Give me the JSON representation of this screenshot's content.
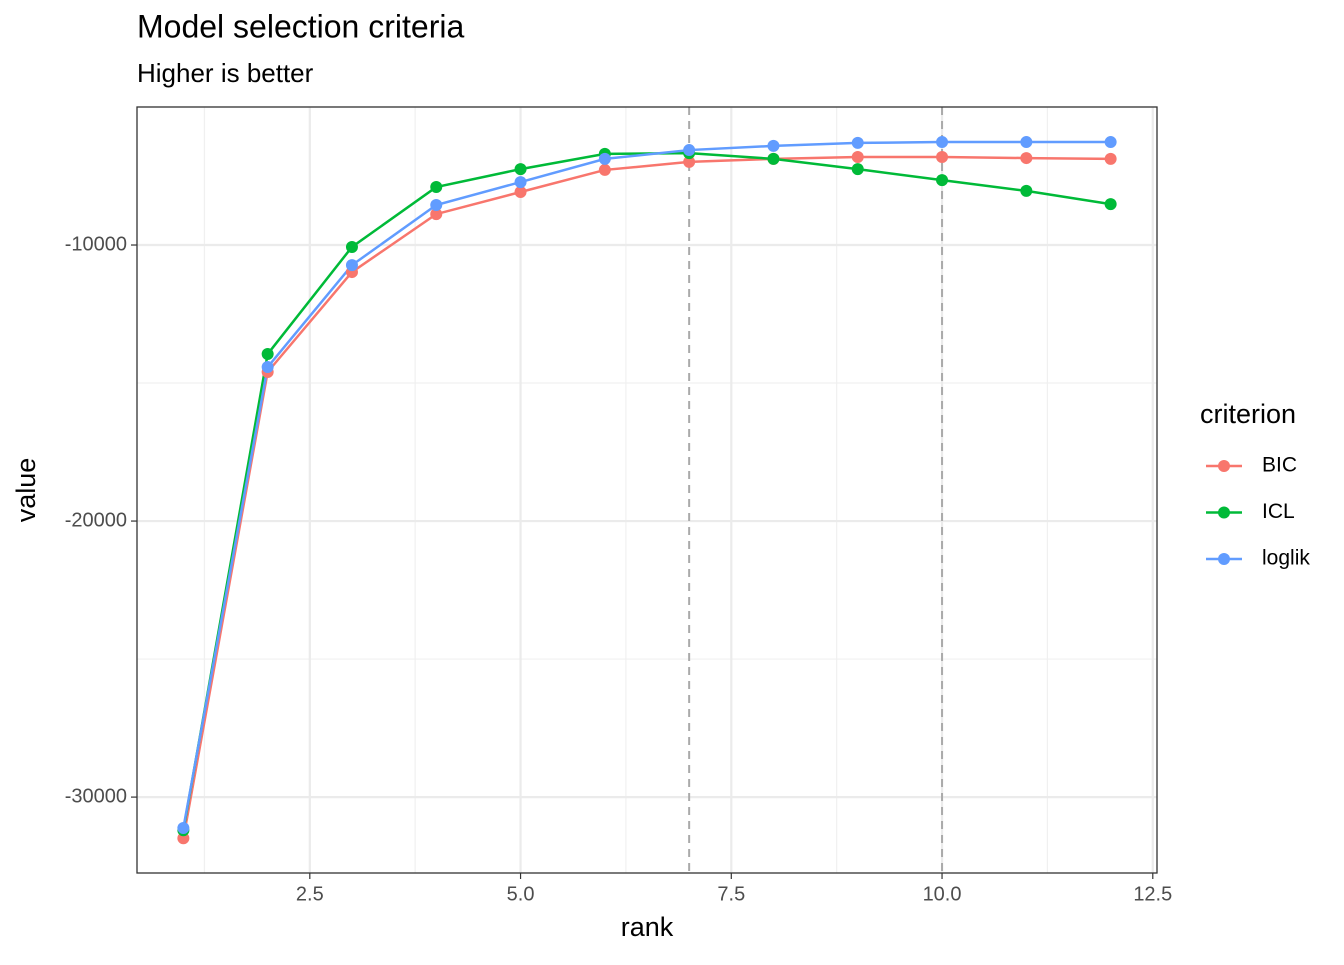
{
  "chart_data": {
    "type": "line",
    "title": "Model selection criteria",
    "subtitle": "Higher is better",
    "x_label": "rank",
    "y_label": "value",
    "legend_title": "criterion",
    "legend_position": "right",
    "grid": true,
    "x": [
      1,
      2,
      3,
      4,
      5,
      6,
      7,
      8,
      9,
      10,
      11,
      12
    ],
    "series": [
      {
        "name": "BIC",
        "color": "#F8766D",
        "values": [
          -31490,
          -14600,
          -10980,
          -8880,
          -8080,
          -7280,
          -6990,
          -6880,
          -6810,
          -6810,
          -6850,
          -6880
        ]
      },
      {
        "name": "ICL",
        "color": "#00BA38",
        "values": [
          -31200,
          -13950,
          -10070,
          -7900,
          -7250,
          -6700,
          -6670,
          -6880,
          -7250,
          -7650,
          -8040,
          -8520
        ]
      },
      {
        "name": "loglik",
        "color": "#619CFF",
        "values": [
          -31120,
          -14420,
          -10730,
          -8550,
          -7720,
          -6880,
          -6560,
          -6410,
          -6300,
          -6270,
          -6270,
          -6270
        ]
      }
    ],
    "vlines": [
      7,
      10
    ],
    "xlim": [
      0.45,
      12.55
    ],
    "ylim": [
      -32750,
      -5000
    ],
    "xticks": [
      2.5,
      {
        "value": 5,
        "label": "5.0"
      },
      7.5,
      {
        "value": 10,
        "label": "10.0"
      },
      12.5
    ],
    "yticks": [
      -30000,
      -20000,
      -10000
    ]
  }
}
